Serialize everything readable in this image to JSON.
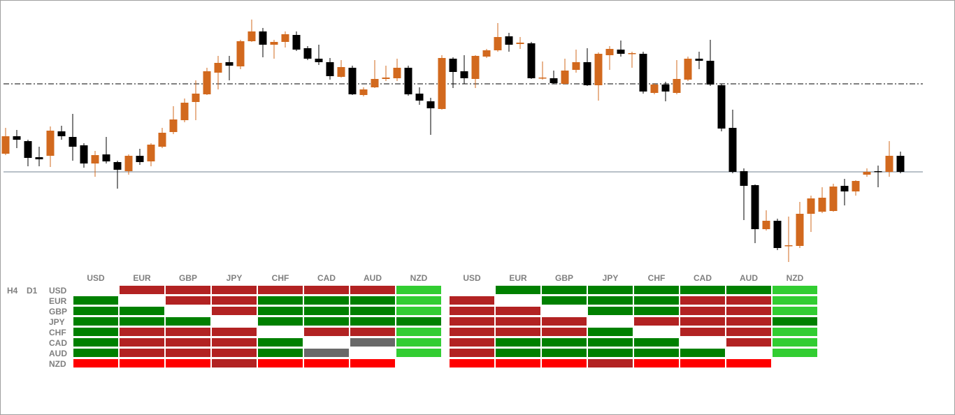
{
  "chart_data": {
    "type": "candlestick",
    "ylim": [
      0,
      400
    ],
    "up_color": "#d2691e",
    "down_color": "#000000",
    "open": [
      180,
      205,
      198,
      175,
      177,
      212,
      204,
      192,
      166,
      179,
      168,
      155,
      177,
      169,
      190,
      211,
      228,
      254,
      265,
      296,
      311,
      305,
      341,
      355,
      336,
      340,
      350,
      331,
      316,
      311,
      290,
      303,
      264,
      275,
      287,
      288,
      303,
      266,
      255,
      244,
      316,
      298,
      287,
      319,
      328,
      348,
      337,
      338,
      288,
      288,
      280,
      300,
      311,
      278,
      321,
      329,
      323,
      323,
      267,
      279,
      267,
      286,
      316,
      313,
      278,
      217,
      155,
      135,
      72,
      84,
      48,
      48,
      94,
      97,
      98,
      134,
      126,
      150,
      155,
      154,
      177
    ],
    "high": [
      217,
      214,
      200,
      190,
      219,
      220,
      237,
      195,
      184,
      204,
      170,
      179,
      187,
      195,
      217,
      248,
      259,
      285,
      303,
      320,
      320,
      343,
      372,
      360,
      343,
      355,
      355,
      334,
      336,
      317,
      314,
      306,
      275,
      314,
      306,
      316,
      306,
      275,
      260,
      321,
      318,
      321,
      321,
      330,
      367,
      353,
      347,
      340,
      312,
      299,
      316,
      329,
      331,
      325,
      334,
      342,
      326,
      326,
      281,
      283,
      314,
      319,
      326,
      343,
      280,
      243,
      159,
      136,
      99,
      87,
      90,
      111,
      120,
      132,
      137,
      144,
      142,
      159,
      163,
      198,
      183
    ],
    "low": [
      178,
      188,
      162,
      162,
      161,
      200,
      170,
      160,
      147,
      166,
      130,
      150,
      164,
      162,
      188,
      208,
      225,
      228,
      264,
      272,
      285,
      301,
      340,
      318,
      316,
      332,
      327,
      314,
      307,
      286,
      289,
      264,
      262,
      274,
      284,
      284,
      263,
      250,
      207,
      243,
      274,
      280,
      274,
      317,
      326,
      326,
      330,
      287,
      286,
      280,
      279,
      296,
      277,
      256,
      300,
      319,
      303,
      266,
      265,
      255,
      265,
      284,
      301,
      277,
      212,
      152,
      85,
      52,
      70,
      42,
      25,
      45,
      68,
      95,
      97,
      106,
      120,
      147,
      132,
      147,
      152
    ],
    "close": [
      205,
      200,
      174,
      172,
      213,
      205,
      190,
      166,
      178,
      169,
      157,
      177,
      168,
      193,
      210,
      229,
      253,
      266,
      298,
      310,
      306,
      341,
      355,
      336,
      340,
      351,
      329,
      316,
      311,
      291,
      304,
      265,
      272,
      287,
      289,
      303,
      265,
      256,
      245,
      317,
      297,
      288,
      320,
      328,
      347,
      336,
      339,
      288,
      289,
      281,
      299,
      311,
      278,
      323,
      330,
      323,
      324,
      269,
      279,
      269,
      287,
      316,
      313,
      279,
      216,
      154,
      134,
      72,
      84,
      45,
      49,
      94,
      116,
      117,
      133,
      126,
      141,
      154,
      154,
      177,
      154
    ],
    "levels": [
      {
        "value": 280,
        "style": "dashdot",
        "color": "#000000"
      },
      {
        "value": 154,
        "style": "solid",
        "color": "#708090"
      }
    ]
  },
  "matrix": {
    "timeframes": [
      "H4",
      "D1"
    ],
    "row_labels": [
      "USD",
      "EUR",
      "GBP",
      "JPY",
      "CHF",
      "CAD",
      "AUD",
      "NZD"
    ],
    "tables": [
      {
        "columns": [
          "USD",
          "EUR",
          "GBP",
          "JPY",
          "CHF",
          "CAD",
          "AUD",
          "NZD"
        ],
        "cells": [
          [
            null,
            "#b22222",
            "#b22222",
            "#b22222",
            "#b22222",
            "#b22222",
            "#b22222",
            "#32cd32"
          ],
          [
            "#008000",
            null,
            "#b22222",
            "#b22222",
            "#008000",
            "#008000",
            "#008000",
            "#32cd32"
          ],
          [
            "#008000",
            "#008000",
            null,
            "#b22222",
            "#008000",
            "#008000",
            "#008000",
            "#32cd32"
          ],
          [
            "#008000",
            "#008000",
            "#008000",
            null,
            "#008000",
            "#008000",
            "#008000",
            "#008000"
          ],
          [
            "#008000",
            "#b22222",
            "#b22222",
            "#b22222",
            null,
            "#b22222",
            "#b22222",
            "#32cd32"
          ],
          [
            "#008000",
            "#b22222",
            "#b22222",
            "#b22222",
            "#008000",
            null,
            "#696969",
            "#32cd32"
          ],
          [
            "#008000",
            "#b22222",
            "#b22222",
            "#b22222",
            "#008000",
            "#696969",
            null,
            "#32cd32"
          ],
          [
            "#ff0000",
            "#ff0000",
            "#ff0000",
            "#b22222",
            "#ff0000",
            "#ff0000",
            "#ff0000",
            null
          ]
        ]
      },
      {
        "columns": [
          "USD",
          "EUR",
          "GBP",
          "JPY",
          "CHF",
          "CAD",
          "AUD",
          "NZD"
        ],
        "cells": [
          [
            null,
            "#008000",
            "#008000",
            "#008000",
            "#008000",
            "#008000",
            "#008000",
            "#32cd32"
          ],
          [
            "#b22222",
            null,
            "#008000",
            "#008000",
            "#008000",
            "#b22222",
            "#b22222",
            "#32cd32"
          ],
          [
            "#b22222",
            "#b22222",
            null,
            "#008000",
            "#008000",
            "#b22222",
            "#b22222",
            "#32cd32"
          ],
          [
            "#b22222",
            "#b22222",
            "#b22222",
            null,
            "#b22222",
            "#b22222",
            "#b22222",
            "#008000"
          ],
          [
            "#b22222",
            "#b22222",
            "#b22222",
            "#008000",
            null,
            "#b22222",
            "#b22222",
            "#32cd32"
          ],
          [
            "#b22222",
            "#008000",
            "#008000",
            "#008000",
            "#008000",
            null,
            "#b22222",
            "#32cd32"
          ],
          [
            "#b22222",
            "#008000",
            "#008000",
            "#008000",
            "#008000",
            "#008000",
            null,
            "#32cd32"
          ],
          [
            "#ff0000",
            "#ff0000",
            "#ff0000",
            "#b22222",
            "#ff0000",
            "#ff0000",
            "#ff0000",
            null
          ]
        ]
      }
    ]
  }
}
